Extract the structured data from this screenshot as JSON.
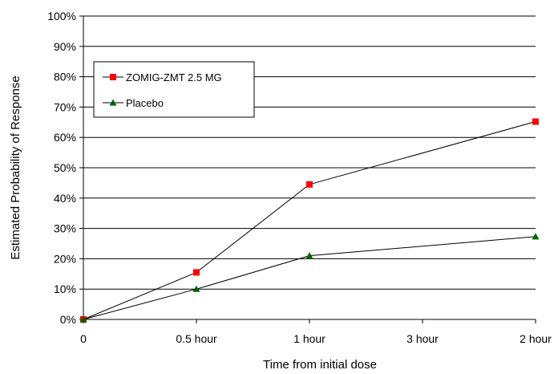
{
  "chart_data": {
    "type": "line",
    "title": "",
    "xlabel": "Time from initial dose",
    "ylabel": "Estimated Probability of Response",
    "categories": [
      "0",
      "0.5 hour",
      "1 hour",
      "3 hour",
      "2 hour"
    ],
    "y_ticks": [
      "0%",
      "10%",
      "20%",
      "30%",
      "40%",
      "50%",
      "60%",
      "70%",
      "80%",
      "90%",
      "100%"
    ],
    "ylim": [
      0,
      100
    ],
    "grid": "horizontal",
    "legend_position": "upper-left inside plot",
    "series": [
      {
        "name": "ZOMIG-ZMT 2.5 MG",
        "marker": "square",
        "color": "#ff0000",
        "points": [
          {
            "x": "0",
            "y": 0
          },
          {
            "x": "0.5 hour",
            "y": 15.5
          },
          {
            "x": "1 hour",
            "y": 44.5
          },
          {
            "x": "2 hour",
            "y": 65.2
          }
        ]
      },
      {
        "name": "Placebo",
        "marker": "triangle",
        "color": "#006400",
        "points": [
          {
            "x": "0",
            "y": 0
          },
          {
            "x": "0.5 hour",
            "y": 10
          },
          {
            "x": "1 hour",
            "y": 21
          },
          {
            "x": "2 hour",
            "y": 27.3
          }
        ]
      }
    ]
  }
}
